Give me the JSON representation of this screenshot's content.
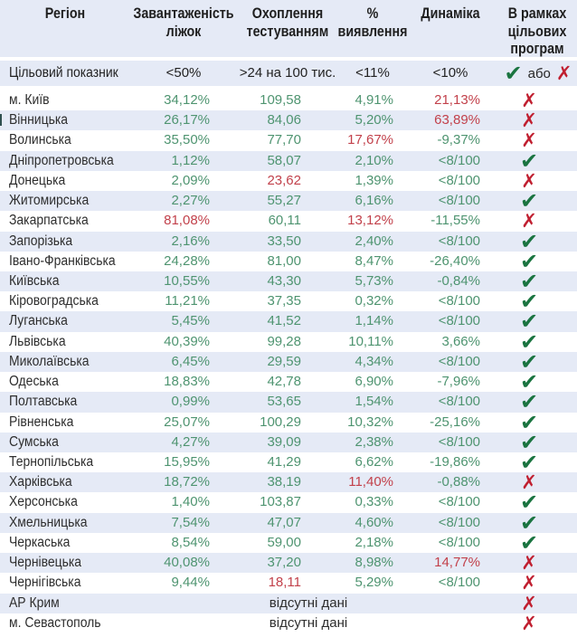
{
  "columns": [
    "Регіон",
    "Завантаженість\nліжок",
    "Охоплення\nтестуванням",
    "%\nвиявлення",
    "Динаміка",
    "В рамках\nцільових\nпрограм"
  ],
  "target_row": {
    "label": "Цільовий показник",
    "beds": "<50%",
    "testing": ">24 на 100 тис.",
    "detection": "<11%",
    "dynamics": "<10%",
    "or_label": "або"
  },
  "no_data_label": "відсутні дані",
  "icons": {
    "check": "✔",
    "cross": "✗"
  },
  "colors": {
    "green": "#4e9470",
    "red": "#c2414b",
    "check_green": "#1a7440",
    "x_red": "#c01f30",
    "stripe_blue": "#e5eaf6",
    "text_dark": "#2e2e2e"
  },
  "rows": [
    {
      "region": "м. Київ",
      "cells": [
        [
          "34,12%",
          "g"
        ],
        [
          "109,58",
          "g"
        ],
        [
          "4,91%",
          "g"
        ],
        [
          "21,13%",
          "r"
        ]
      ],
      "status": "x"
    },
    {
      "region": "Вінницька",
      "cells": [
        [
          "26,17%",
          "g"
        ],
        [
          "84,06",
          "g"
        ],
        [
          "5,20%",
          "g"
        ],
        [
          "63,89%",
          "r"
        ]
      ],
      "status": "x"
    },
    {
      "region": "Волинська",
      "cells": [
        [
          "35,50%",
          "g"
        ],
        [
          "77,70",
          "g"
        ],
        [
          "17,67%",
          "r"
        ],
        [
          "-9,37%",
          "g"
        ]
      ],
      "status": "x"
    },
    {
      "region": "Дніпропетровська",
      "cells": [
        [
          "1,12%",
          "g"
        ],
        [
          "58,07",
          "g"
        ],
        [
          "2,10%",
          "g"
        ],
        [
          "<8/100",
          "g"
        ]
      ],
      "status": "check"
    },
    {
      "region": "Донецька",
      "cells": [
        [
          "2,09%",
          "g"
        ],
        [
          "23,62",
          "r"
        ],
        [
          "1,39%",
          "g"
        ],
        [
          "<8/100",
          "g"
        ]
      ],
      "status": "x"
    },
    {
      "region": "Житомирська",
      "cells": [
        [
          "2,27%",
          "g"
        ],
        [
          "55,27",
          "g"
        ],
        [
          "6,16%",
          "g"
        ],
        [
          "<8/100",
          "g"
        ]
      ],
      "status": "check"
    },
    {
      "region": "Закарпатська",
      "cells": [
        [
          "81,08%",
          "r"
        ],
        [
          "60,11",
          "g"
        ],
        [
          "13,12%",
          "r"
        ],
        [
          "-11,55%",
          "g"
        ]
      ],
      "status": "x"
    },
    {
      "region": "Запорізька",
      "cells": [
        [
          "2,16%",
          "g"
        ],
        [
          "33,50",
          "g"
        ],
        [
          "2,40%",
          "g"
        ],
        [
          "<8/100",
          "g"
        ]
      ],
      "status": "check"
    },
    {
      "region": "Івано-Франківська",
      "cells": [
        [
          "24,28%",
          "g"
        ],
        [
          "81,00",
          "g"
        ],
        [
          "8,47%",
          "g"
        ],
        [
          "-26,40%",
          "g"
        ]
      ],
      "status": "check"
    },
    {
      "region": "Київська",
      "cells": [
        [
          "10,55%",
          "g"
        ],
        [
          "43,30",
          "g"
        ],
        [
          "5,73%",
          "g"
        ],
        [
          "-0,84%",
          "g"
        ]
      ],
      "status": "check"
    },
    {
      "region": "Кіровоградська",
      "cells": [
        [
          "11,21%",
          "g"
        ],
        [
          "37,35",
          "g"
        ],
        [
          "0,32%",
          "g"
        ],
        [
          "<8/100",
          "g"
        ]
      ],
      "status": "check"
    },
    {
      "region": "Луганська",
      "cells": [
        [
          "5,45%",
          "g"
        ],
        [
          "41,52",
          "g"
        ],
        [
          "1,14%",
          "g"
        ],
        [
          "<8/100",
          "g"
        ]
      ],
      "status": "check"
    },
    {
      "region": "Львівська",
      "cells": [
        [
          "40,39%",
          "g"
        ],
        [
          "99,28",
          "g"
        ],
        [
          "10,11%",
          "g"
        ],
        [
          "3,66%",
          "g"
        ]
      ],
      "status": "check"
    },
    {
      "region": "Миколаївська",
      "cells": [
        [
          "6,45%",
          "g"
        ],
        [
          "29,59",
          "g"
        ],
        [
          "4,34%",
          "g"
        ],
        [
          "<8/100",
          "g"
        ]
      ],
      "status": "check"
    },
    {
      "region": "Одеська",
      "cells": [
        [
          "18,83%",
          "g"
        ],
        [
          "42,78",
          "g"
        ],
        [
          "6,90%",
          "g"
        ],
        [
          "-7,96%",
          "g"
        ]
      ],
      "status": "check"
    },
    {
      "region": "Полтавська",
      "cells": [
        [
          "0,99%",
          "g"
        ],
        [
          "53,65",
          "g"
        ],
        [
          "1,54%",
          "g"
        ],
        [
          "<8/100",
          "g"
        ]
      ],
      "status": "check"
    },
    {
      "region": "Рівненська",
      "cells": [
        [
          "25,07%",
          "g"
        ],
        [
          "100,29",
          "g"
        ],
        [
          "10,32%",
          "g"
        ],
        [
          "-25,16%",
          "g"
        ]
      ],
      "status": "check"
    },
    {
      "region": "Сумська",
      "cells": [
        [
          "4,27%",
          "g"
        ],
        [
          "39,09",
          "g"
        ],
        [
          "2,38%",
          "g"
        ],
        [
          "<8/100",
          "g"
        ]
      ],
      "status": "check"
    },
    {
      "region": "Тернопільська",
      "cells": [
        [
          "15,95%",
          "g"
        ],
        [
          "41,29",
          "g"
        ],
        [
          "6,62%",
          "g"
        ],
        [
          "-19,86%",
          "g"
        ]
      ],
      "status": "check"
    },
    {
      "region": "Харківська",
      "cells": [
        [
          "18,72%",
          "g"
        ],
        [
          "38,19",
          "g"
        ],
        [
          "11,40%",
          "r"
        ],
        [
          "-0,88%",
          "g"
        ]
      ],
      "status": "x"
    },
    {
      "region": "Херсонська",
      "cells": [
        [
          "1,40%",
          "g"
        ],
        [
          "103,87",
          "g"
        ],
        [
          "0,33%",
          "g"
        ],
        [
          "<8/100",
          "g"
        ]
      ],
      "status": "check"
    },
    {
      "region": "Хмельницька",
      "cells": [
        [
          "7,54%",
          "g"
        ],
        [
          "47,07",
          "g"
        ],
        [
          "4,60%",
          "g"
        ],
        [
          "<8/100",
          "g"
        ]
      ],
      "status": "check"
    },
    {
      "region": "Черкаська",
      "cells": [
        [
          "8,54%",
          "g"
        ],
        [
          "59,00",
          "g"
        ],
        [
          "2,18%",
          "g"
        ],
        [
          "<8/100",
          "g"
        ]
      ],
      "status": "check"
    },
    {
      "region": "Чернівецька",
      "cells": [
        [
          "40,08%",
          "g"
        ],
        [
          "37,20",
          "g"
        ],
        [
          "8,98%",
          "g"
        ],
        [
          "14,77%",
          "r"
        ]
      ],
      "status": "x"
    },
    {
      "region": "Чернігівська",
      "cells": [
        [
          "9,44%",
          "g"
        ],
        [
          "18,11",
          "r"
        ],
        [
          "5,29%",
          "g"
        ],
        [
          "<8/100",
          "g"
        ]
      ],
      "status": "x"
    },
    {
      "region": "АР Крим",
      "no_data": true,
      "status": "x"
    },
    {
      "region": "м. Севастополь",
      "no_data": true,
      "status": "x"
    }
  ]
}
